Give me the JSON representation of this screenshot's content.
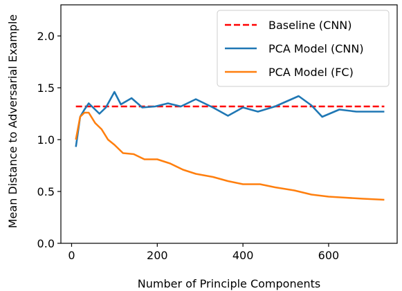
{
  "chart_data": {
    "type": "line",
    "title": "",
    "xlabel": "Number of Principle Components",
    "ylabel": "Mean Distance to Adversarial Example",
    "xlim": [
      -25,
      760
    ],
    "ylim": [
      0.0,
      2.3
    ],
    "xticks": [
      0,
      200,
      400,
      600
    ],
    "xtick_labels": [
      "0",
      "200",
      "400",
      "600"
    ],
    "yticks": [
      0.0,
      0.5,
      1.0,
      1.5,
      2.0
    ],
    "ytick_labels": [
      "0.0",
      "0.5",
      "1.0",
      "1.5",
      "2.0"
    ],
    "grid": false,
    "legend_position": "top-right",
    "series": [
      {
        "name": "Baseline (CNN)",
        "color": "#ff0000",
        "style": "dashed",
        "x": [
          10,
          730
        ],
        "y": [
          1.32,
          1.32
        ]
      },
      {
        "name": "PCA Model (CNN)",
        "color": "#1f77b4",
        "style": "solid",
        "x": [
          10,
          20,
          30,
          40,
          50,
          65,
          80,
          100,
          115,
          140,
          165,
          195,
          225,
          255,
          290,
          330,
          365,
          400,
          435,
          475,
          530,
          560,
          585,
          625,
          665,
          700,
          730
        ],
        "y": [
          0.93,
          1.22,
          1.29,
          1.35,
          1.31,
          1.25,
          1.31,
          1.46,
          1.34,
          1.4,
          1.31,
          1.32,
          1.35,
          1.32,
          1.39,
          1.31,
          1.23,
          1.31,
          1.27,
          1.32,
          1.42,
          1.33,
          1.22,
          1.29,
          1.27,
          1.27,
          1.27
        ]
      },
      {
        "name": "PCA Model (FC)",
        "color": "#ff7f0e",
        "style": "solid",
        "x": [
          10,
          20,
          30,
          40,
          55,
          70,
          85,
          100,
          120,
          145,
          170,
          200,
          230,
          260,
          290,
          330,
          365,
          400,
          440,
          475,
          520,
          560,
          600,
          640,
          680,
          730
        ],
        "y": [
          1.0,
          1.22,
          1.26,
          1.26,
          1.16,
          1.1,
          1.0,
          0.95,
          0.87,
          0.86,
          0.81,
          0.81,
          0.77,
          0.71,
          0.67,
          0.64,
          0.6,
          0.57,
          0.57,
          0.54,
          0.51,
          0.47,
          0.45,
          0.44,
          0.43,
          0.42
        ]
      }
    ]
  }
}
